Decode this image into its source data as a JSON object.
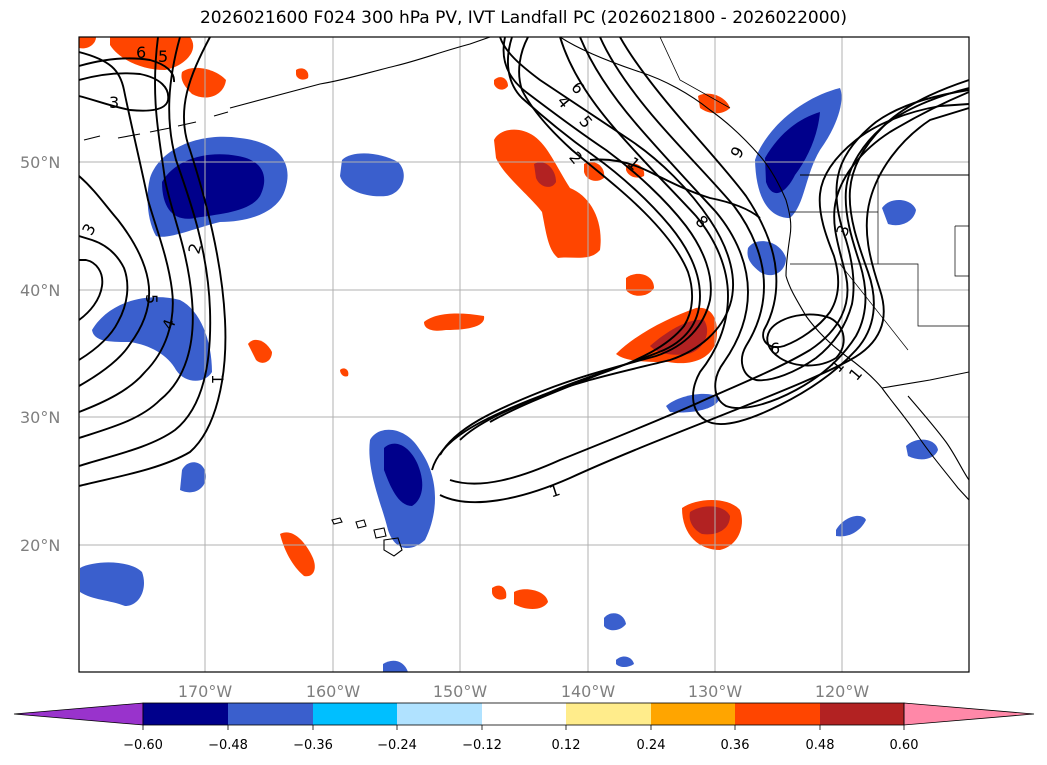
{
  "title": "2026021600 F024 300 hPa PV, IVT Landfall PC (2026021800 - 2026022000)",
  "lat_labels": [
    "50°N",
    "40°N",
    "30°N",
    "20°N"
  ],
  "lon_labels": [
    "170°W",
    "160°W",
    "150°W",
    "140°W",
    "130°W",
    "120°W"
  ],
  "colorbar": {
    "ticks": [
      "−0.60",
      "−0.48",
      "−0.36",
      "−0.24",
      "−0.12",
      "0.12",
      "0.24",
      "0.36",
      "0.48",
      "0.60"
    ],
    "colors": [
      "#9933cc",
      "#00008b",
      "#3a5fcd",
      "#00bfff",
      "#b0e2ff",
      "#ffffff",
      "#ffec8b",
      "#ffa500",
      "#ff4500",
      "#b22222",
      "#ff88a8"
    ]
  },
  "contour_labels": [
    "6",
    "5",
    "3",
    "3",
    "5",
    "4",
    "2",
    "1",
    "6",
    "4",
    "5",
    "2",
    "1",
    "8",
    "9",
    "6",
    "3",
    "1",
    "1",
    "1"
  ],
  "colors": {
    "coast": "#000000",
    "grid": "#b0b0b0",
    "contour": "#000000"
  }
}
